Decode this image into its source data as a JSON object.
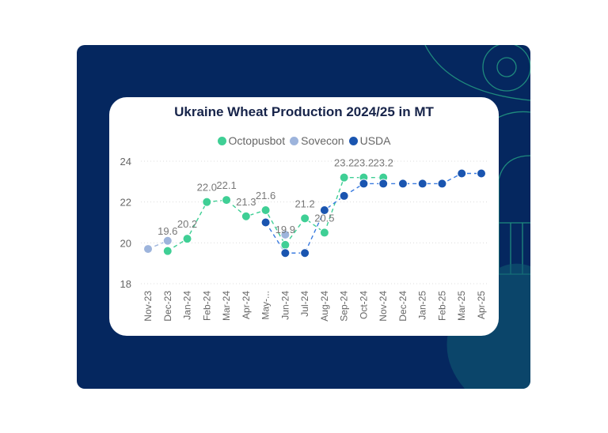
{
  "chart_data": {
    "type": "line",
    "title": "Ukraine Wheat Production 2024/25 in MT",
    "xlabel": "",
    "ylabel": "",
    "ylim": [
      18,
      24
    ],
    "yticks": [
      "18",
      "20",
      "22",
      "24"
    ],
    "grid": true,
    "legend_position": "top-center",
    "categories": [
      "Nov-23",
      "Dec-23",
      "Jan-24",
      "Feb-24",
      "Mar-24",
      "Apr-24",
      "May-...",
      "Jun-24",
      "Jul-24",
      "Aug-24",
      "Sep-24",
      "Oct-24",
      "Nov-24",
      "Dec-24",
      "Jan-25",
      "Feb-25",
      "Mar-25",
      "Apr-25"
    ],
    "series": [
      {
        "name": "Octopusbot",
        "color": "#3fcf95",
        "line_color": "#3fcf95",
        "values": [
          null,
          19.6,
          20.2,
          22.0,
          22.1,
          21.3,
          21.6,
          19.9,
          21.2,
          20.5,
          23.2,
          23.2,
          23.2,
          null,
          null,
          null,
          null,
          null
        ],
        "labels": [
          null,
          "19.6",
          "20.2",
          "22.0",
          "22.1",
          "21.3",
          "21.6",
          "19.9",
          "21.2",
          "20.5",
          "23.2",
          "23.2",
          "23.2",
          null,
          null,
          null,
          null,
          null
        ]
      },
      {
        "name": "Sovecon",
        "color": "#9db4dc",
        "line_color": "#9db4dc",
        "values": [
          19.7,
          20.1,
          null,
          null,
          null,
          null,
          null,
          20.4,
          null,
          null,
          null,
          null,
          null,
          null,
          null,
          null,
          null,
          null
        ]
      },
      {
        "name": "USDA",
        "color": "#1a55b0",
        "line_color": "#3a7be0",
        "values": [
          null,
          null,
          null,
          null,
          null,
          null,
          21.0,
          19.5,
          19.5,
          21.6,
          22.3,
          22.9,
          22.9,
          22.9,
          22.9,
          22.9,
          23.4,
          23.4
        ]
      }
    ]
  }
}
